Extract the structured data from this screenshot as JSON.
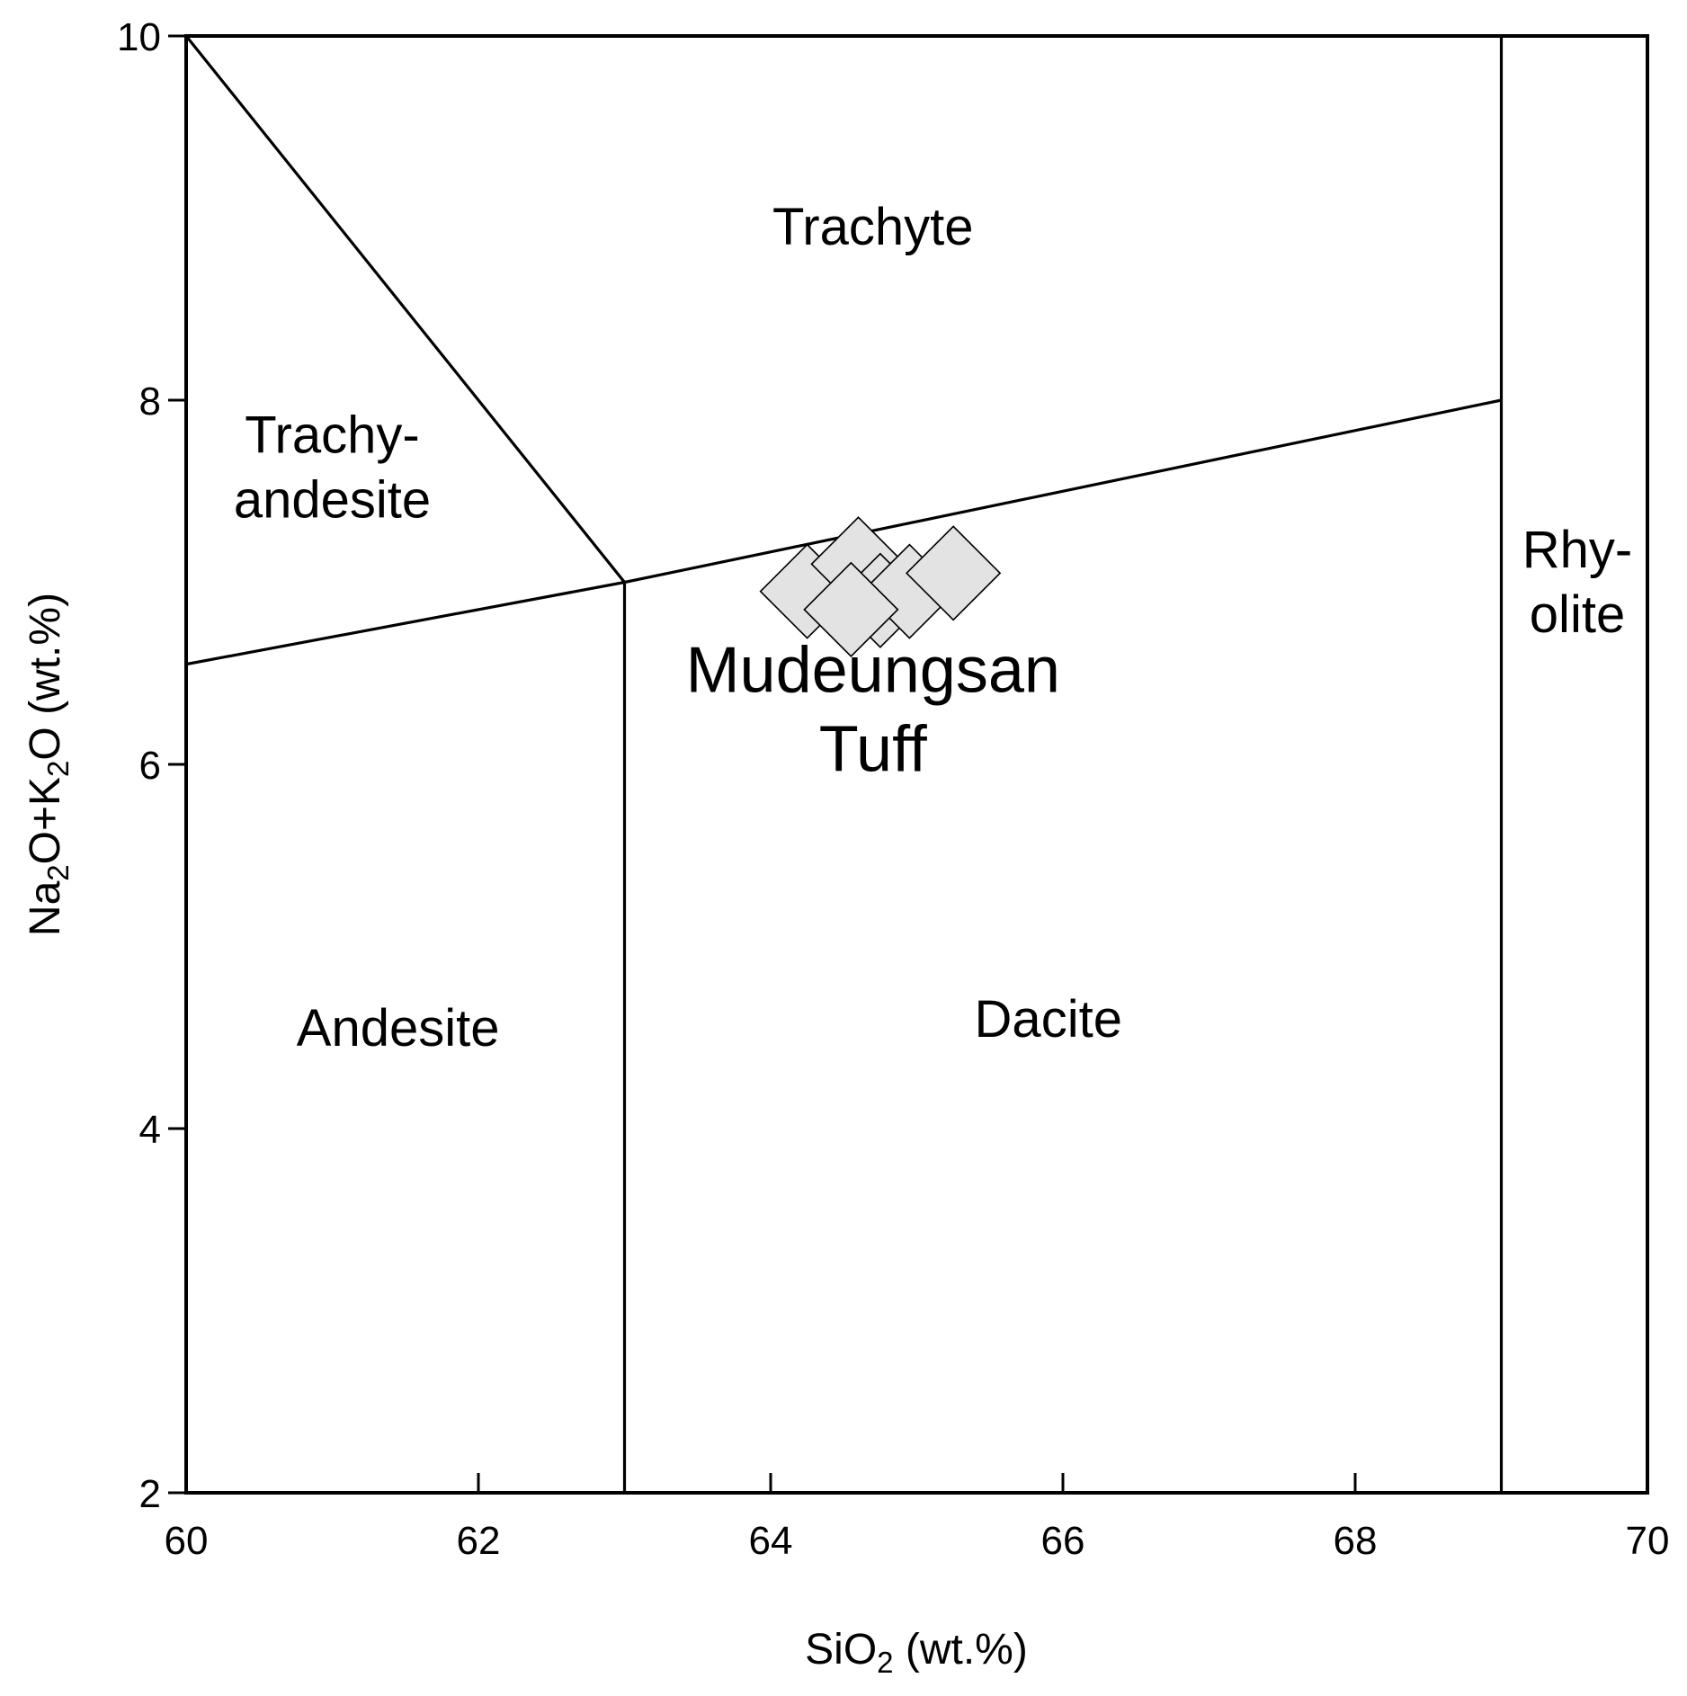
{
  "chart_data": {
    "type": "scatter",
    "xlabel": {
      "main": "SiO",
      "sub": "2",
      "rest": " (wt.%)"
    },
    "ylabel": {
      "a": "Na",
      "a_sub": "2",
      "b": "O+K",
      "b_sub": "2",
      "c": "O (wt.%)"
    },
    "xlim": [
      60,
      70
    ],
    "ylim": [
      2,
      10
    ],
    "x_ticks": [
      60,
      62,
      64,
      66,
      68,
      70
    ],
    "y_ticks": [
      2,
      4,
      6,
      8,
      10
    ],
    "grid": false,
    "legend": "none",
    "boundaries": [
      {
        "id": "trachyte-trachyandesite",
        "points": [
          [
            60,
            10
          ],
          [
            63,
            7
          ]
        ]
      },
      {
        "id": "alkali-line",
        "points": [
          [
            60,
            6.55
          ],
          [
            63,
            7.0
          ],
          [
            69,
            8.0
          ]
        ]
      },
      {
        "id": "andesite-dacite",
        "points": [
          [
            63,
            2
          ],
          [
            63,
            7.0
          ]
        ]
      },
      {
        "id": "dacite-rhyolite",
        "points": [
          [
            69,
            2
          ],
          [
            69,
            10
          ]
        ]
      }
    ],
    "regions": [
      {
        "id": "trachyte",
        "lines": [
          "Trachyte"
        ],
        "x": 64.7,
        "y": 8.95
      },
      {
        "id": "trachyandesite",
        "lines": [
          "Trachy-",
          "andesite"
        ],
        "x": 61.0,
        "y": 7.63
      },
      {
        "id": "andesite",
        "lines": [
          "Andesite"
        ],
        "x": 61.45,
        "y": 4.55
      },
      {
        "id": "dacite",
        "lines": [
          "Dacite"
        ],
        "x": 65.9,
        "y": 4.6
      },
      {
        "id": "rhyolite",
        "lines": [
          "Rhy-",
          "olite"
        ],
        "x": 69.52,
        "y": 7.0
      }
    ],
    "annotations": [
      {
        "id": "mudeungsan-tuff",
        "lines": [
          "Mudeungsan",
          "Tuff"
        ],
        "x": 64.7,
        "y": 6.3
      }
    ],
    "series": [
      {
        "marker": "diamond",
        "color": "#e3e3e3",
        "points": [
          {
            "x": 64.25,
            "y": 6.95
          },
          {
            "x": 64.6,
            "y": 7.1
          },
          {
            "x": 64.75,
            "y": 6.9
          },
          {
            "x": 64.95,
            "y": 6.95
          },
          {
            "x": 65.25,
            "y": 7.05
          },
          {
            "x": 64.55,
            "y": 6.85
          }
        ]
      }
    ]
  }
}
